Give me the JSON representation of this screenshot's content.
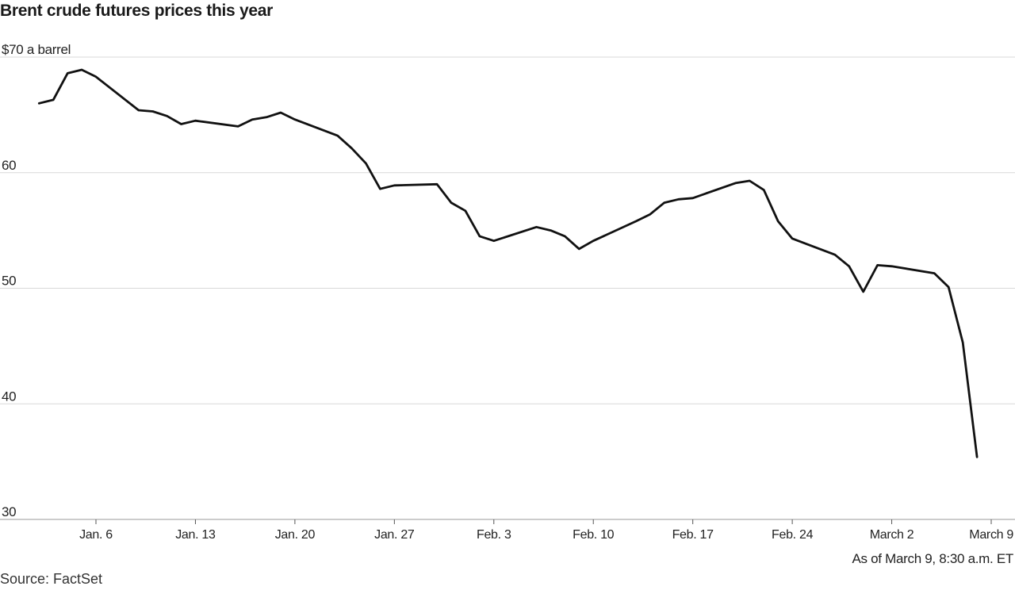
{
  "chart_data": {
    "type": "line",
    "title": "Brent crude futures prices this year",
    "ylabel": "",
    "xlabel": "",
    "ylim": [
      30,
      70
    ],
    "y_ticks": [
      70,
      60,
      50,
      40,
      30
    ],
    "y_tick_labels": [
      "$70 a barrel",
      "60",
      "50",
      "40",
      "30"
    ],
    "x_tick_labels": [
      "Jan. 6",
      "Jan. 13",
      "Jan. 20",
      "Jan. 27",
      "Feb. 3",
      "Feb. 10",
      "Feb. 17",
      "Feb. 24",
      "March 2",
      "March 9"
    ],
    "x_tick_days": [
      6,
      13,
      20,
      27,
      34,
      41,
      48,
      55,
      62,
      69
    ],
    "grid": true,
    "series": [
      {
        "name": "",
        "points": [
          [
            2,
            66.0
          ],
          [
            3,
            66.3
          ],
          [
            4,
            68.6
          ],
          [
            5,
            68.9
          ],
          [
            6,
            68.3
          ],
          [
            9,
            65.4
          ],
          [
            10,
            65.3
          ],
          [
            11,
            64.9
          ],
          [
            12,
            64.2
          ],
          [
            13,
            64.5
          ],
          [
            16,
            64.0
          ],
          [
            17,
            64.6
          ],
          [
            18,
            64.8
          ],
          [
            19,
            65.2
          ],
          [
            20,
            64.6
          ],
          [
            23,
            63.2
          ],
          [
            24,
            62.1
          ],
          [
            25,
            60.8
          ],
          [
            26,
            58.6
          ],
          [
            27,
            58.9
          ],
          [
            30,
            59.0
          ],
          [
            31,
            57.4
          ],
          [
            32,
            56.7
          ],
          [
            33,
            54.5
          ],
          [
            34,
            54.1
          ],
          [
            37,
            55.3
          ],
          [
            38,
            55.0
          ],
          [
            39,
            54.5
          ],
          [
            40,
            53.4
          ],
          [
            41,
            54.1
          ],
          [
            44,
            55.8
          ],
          [
            45,
            56.4
          ],
          [
            46,
            57.4
          ],
          [
            47,
            57.7
          ],
          [
            48,
            57.8
          ],
          [
            51,
            59.1
          ],
          [
            52,
            59.3
          ],
          [
            53,
            58.5
          ],
          [
            54,
            55.8
          ],
          [
            55,
            54.3
          ],
          [
            58,
            52.9
          ],
          [
            59,
            51.9
          ],
          [
            60,
            49.7
          ],
          [
            61,
            52.0
          ],
          [
            62,
            51.9
          ],
          [
            65,
            51.3
          ],
          [
            66,
            50.1
          ],
          [
            67,
            45.3
          ],
          [
            68,
            35.4
          ]
        ]
      }
    ]
  },
  "footer": {
    "source": "Source: FactSet",
    "as_of": "As of March 9, 8:30 a.m. ET"
  }
}
